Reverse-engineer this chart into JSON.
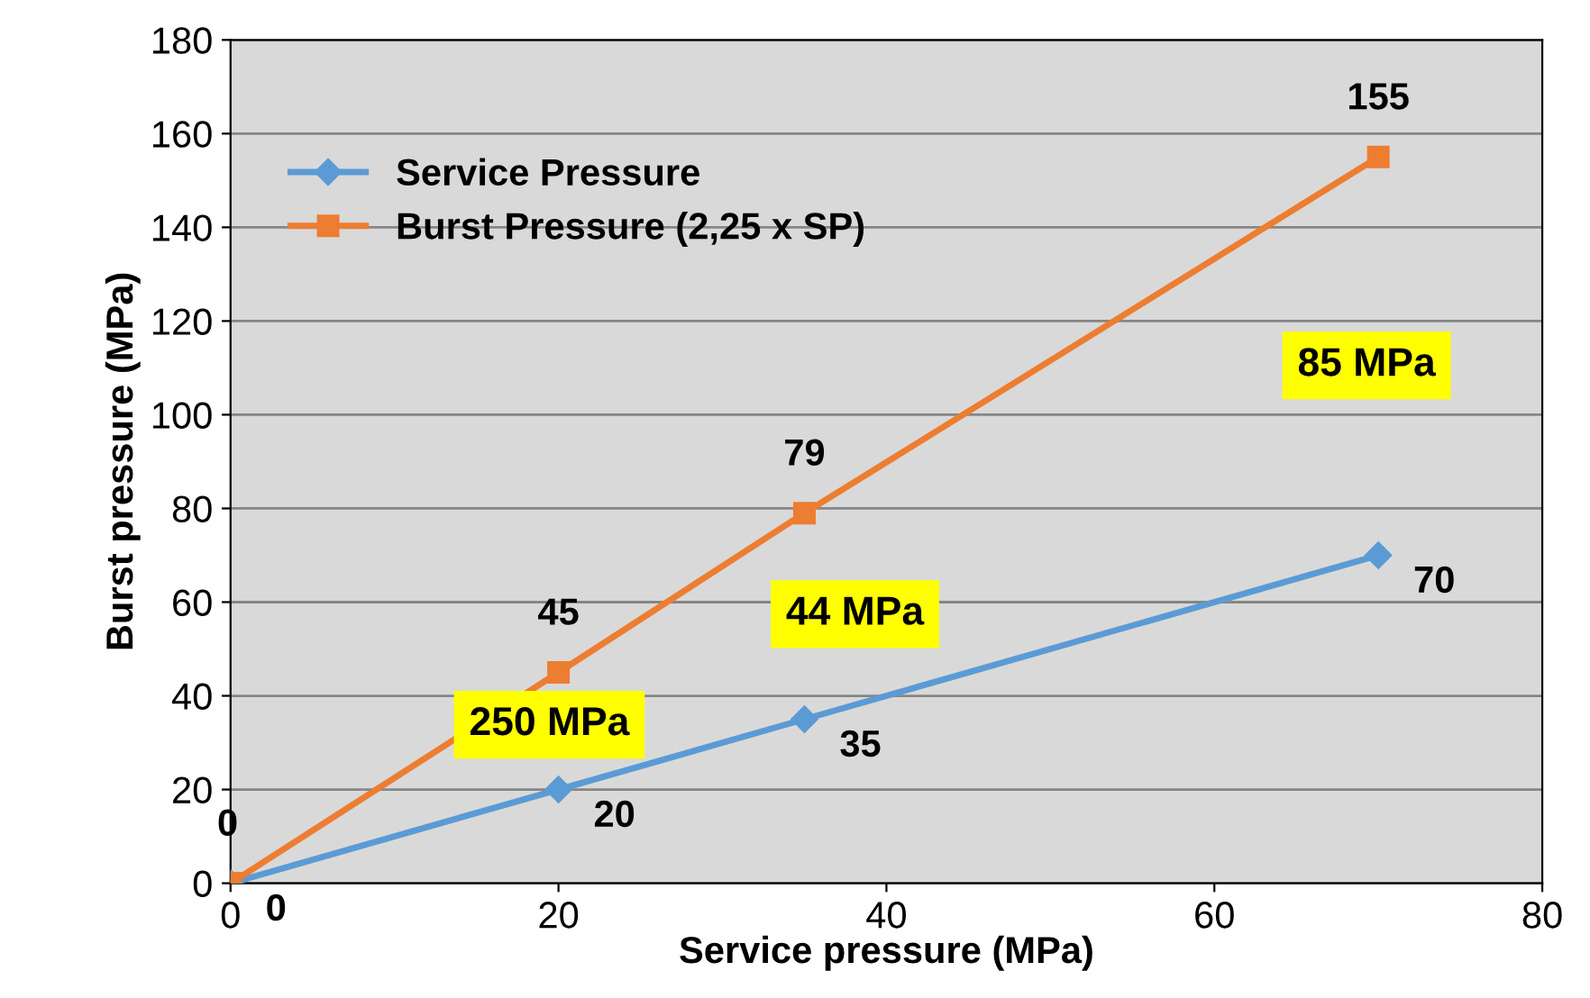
{
  "chart_data": {
    "type": "line",
    "xlabel": "Service pressure (MPa)",
    "ylabel": "Burst pressure (MPa)",
    "xlim": [
      0,
      80
    ],
    "xticks": [
      0,
      20,
      40,
      60,
      80
    ],
    "ylim": [
      0,
      180
    ],
    "yticks": [
      0,
      20,
      40,
      60,
      80,
      100,
      120,
      140,
      160,
      180
    ],
    "grid": "y",
    "legend": "top left",
    "data_labels": true,
    "series": [
      {
        "name": "Service Pressure",
        "color": "#5b9bd5",
        "marker": "diamond",
        "x": [
          0,
          20,
          35,
          70
        ],
        "values": [
          0,
          20,
          35,
          70
        ]
      },
      {
        "name": "Burst Pressure (2,25 x SP)",
        "color": "#ed7d31",
        "marker": "square",
        "x": [
          0,
          20,
          35,
          70
        ],
        "values": [
          0,
          45,
          79,
          155
        ]
      }
    ],
    "annotations": [
      "250 MPa",
      "44 MPa",
      "85 MPa"
    ]
  }
}
